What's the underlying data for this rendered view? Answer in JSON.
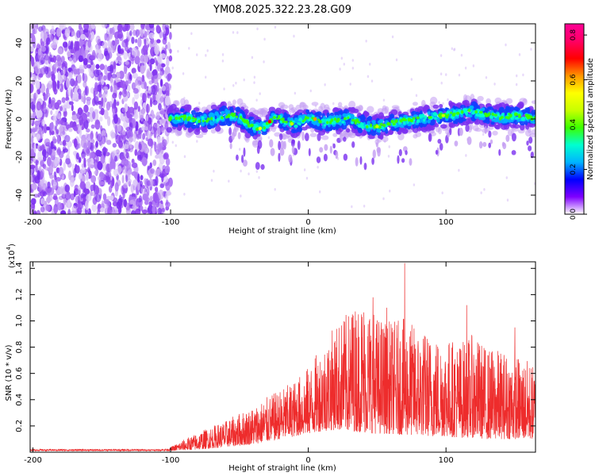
{
  "title": "YM08.2025.322.23.28.G09",
  "colors": {
    "frame": "#000000",
    "snr_line": "#ee2c2c",
    "scatter_low": "#c9a6f3",
    "scatter_mid": "#7b2ff0",
    "band_core": "#1040ff"
  },
  "chart_data": [
    {
      "type": "heatmap",
      "name": "spectrogram",
      "xlabel": "Height of straight line (km)",
      "ylabel": "Frequency (Hz)",
      "xlim": [
        -202,
        165
      ],
      "ylim": [
        -50,
        50
      ],
      "xticks": [
        -200,
        -100,
        0,
        100
      ],
      "xtick_labels": [
        "-200",
        "-100",
        "0",
        "100"
      ],
      "yticks": [
        -40,
        -20,
        0,
        20,
        40
      ],
      "ytick_labels": [
        "-40",
        "-20",
        "0",
        "20",
        "40"
      ],
      "noise_region_x": [
        -202,
        -101
      ],
      "band_center_profile": {
        "x": [
          -101,
          -90,
          -80,
          -70,
          -60,
          -50,
          -45,
          -40,
          -35,
          -30,
          -25,
          -20,
          -15,
          -10,
          -5,
          0,
          5,
          10,
          20,
          30,
          40,
          50,
          60,
          70,
          80,
          90,
          100,
          110,
          120,
          130,
          140,
          150,
          160,
          165
        ],
        "y": [
          0,
          1,
          -1,
          0,
          2,
          1,
          -2,
          -4,
          -5,
          -3,
          1,
          0,
          -2,
          -3,
          -1,
          1,
          0,
          -2,
          -1,
          0,
          -3,
          -4,
          -2,
          -1,
          0,
          1,
          2,
          3,
          4,
          2,
          1,
          2,
          1,
          0
        ]
      },
      "colorbar": {
        "label": "Normalized spectral amplitude",
        "range": [
          0.0,
          0.85
        ],
        "ticks": [
          0.0,
          0.2,
          0.4,
          0.6,
          0.8
        ],
        "tick_labels": [
          "0.0",
          "0.2",
          "0.4",
          "0.6",
          "0.8"
        ],
        "colormap": [
          "#ffffff",
          "#7f00ff",
          "#0000ff",
          "#00b4ff",
          "#00ffd0",
          "#3cff00",
          "#c8ff00",
          "#ffff00",
          "#ff9600",
          "#ff0000",
          "#ff0064",
          "#ff0096"
        ]
      }
    },
    {
      "type": "line",
      "name": "snr",
      "xlabel": "Height of straight line (km)",
      "ylabel": "SNR (10 * v/v)",
      "scale_note": "(x10",
      "scale_exp": "4",
      "xlim": [
        -202,
        165
      ],
      "ylim": [
        0,
        1.45
      ],
      "xticks": [
        -200,
        -100,
        0,
        100
      ],
      "xtick_labels": [
        "-200",
        "-100",
        "0",
        "100"
      ],
      "yticks": [
        0.2,
        0.4,
        0.6,
        0.8,
        1.0,
        1.2,
        1.4
      ],
      "ytick_labels": [
        "0.2",
        "0.4",
        "0.6",
        "0.8",
        "1.0",
        "1.2",
        "1.4"
      ],
      "envelope": {
        "x": [
          -202,
          -150,
          -110,
          -100,
          -90,
          -80,
          -70,
          -60,
          -50,
          -40,
          -30,
          -20,
          -10,
          0,
          10,
          20,
          30,
          40,
          50,
          60,
          70,
          80,
          90,
          100,
          110,
          120,
          130,
          140,
          150,
          160,
          165
        ],
        "peak": [
          0.03,
          0.03,
          0.03,
          0.04,
          0.1,
          0.15,
          0.2,
          0.24,
          0.3,
          0.35,
          0.42,
          0.48,
          0.55,
          0.65,
          0.82,
          0.98,
          1.08,
          1.2,
          1.05,
          1.0,
          1.02,
          0.95,
          0.9,
          0.88,
          0.85,
          0.9,
          0.8,
          0.78,
          0.75,
          0.7,
          0.65
        ],
        "base": [
          0.01,
          0.01,
          0.01,
          0.01,
          0.015,
          0.02,
          0.03,
          0.04,
          0.05,
          0.06,
          0.08,
          0.1,
          0.12,
          0.14,
          0.16,
          0.17,
          0.16,
          0.15,
          0.14,
          0.14,
          0.13,
          0.13,
          0.12,
          0.12,
          0.11,
          0.11,
          0.1,
          0.1,
          0.1,
          0.1,
          0.1
        ]
      },
      "spikes": [
        {
          "x": 47,
          "y": 1.18
        },
        {
          "x": 70,
          "y": 1.44
        },
        {
          "x": 32,
          "y": 1.05
        },
        {
          "x": 57,
          "y": 1.1
        },
        {
          "x": 115,
          "y": 1.12
        },
        {
          "x": 150,
          "y": 0.95
        }
      ]
    }
  ]
}
